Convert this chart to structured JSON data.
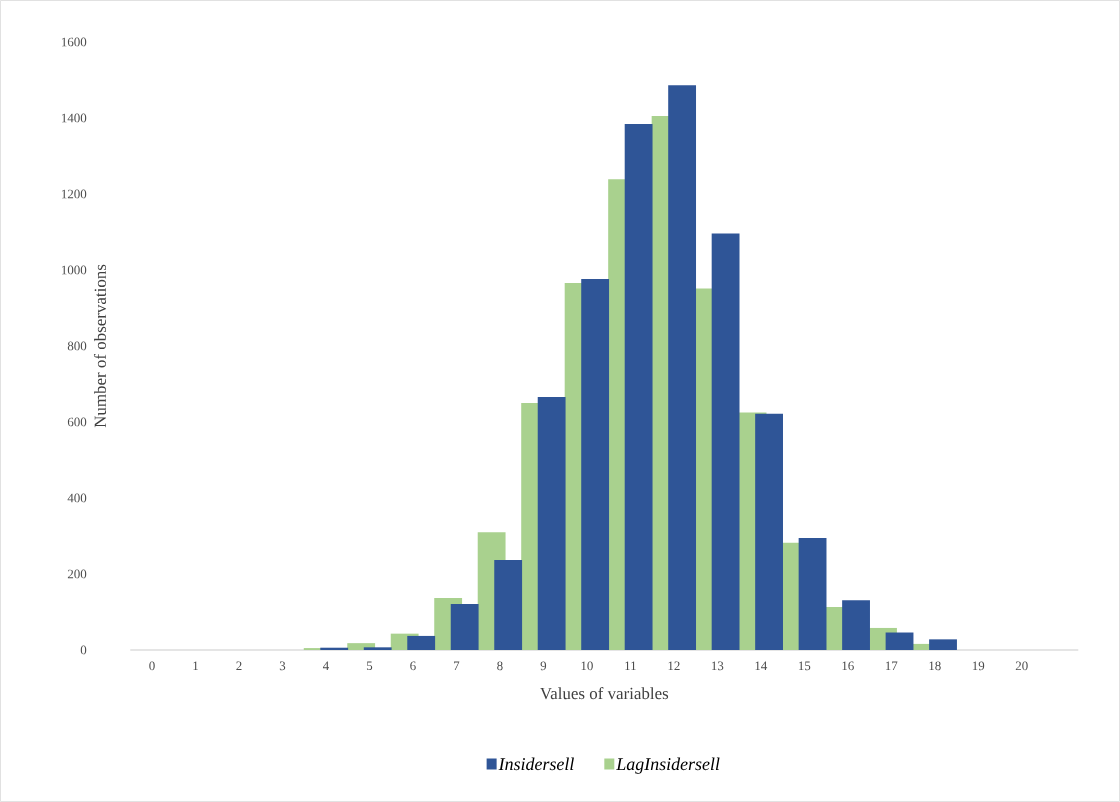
{
  "chart_data": {
    "type": "bar",
    "xlabel": "Values of variables",
    "ylabel": "Number of observations",
    "categories": [
      "0",
      "1",
      "2",
      "3",
      "4",
      "5",
      "6",
      "7",
      "8",
      "9",
      "10",
      "11",
      "12",
      "13",
      "14",
      "15",
      "16",
      "17",
      "18",
      "19",
      "20"
    ],
    "series": [
      {
        "name": "Insidersell",
        "color": "#2f5597",
        "values": [
          0,
          0,
          0,
          0,
          6,
          7,
          37,
          121,
          237,
          666,
          976,
          1384,
          1486,
          1096,
          622,
          295,
          131,
          46,
          28,
          0,
          0
        ]
      },
      {
        "name": "LagInsidersell",
        "color": "#a9d18e",
        "values": [
          0,
          0,
          0,
          0,
          5,
          18,
          43,
          137,
          310,
          650,
          966,
          1239,
          1405,
          951,
          625,
          282,
          113,
          58,
          16,
          0,
          0
        ]
      }
    ],
    "ylim": [
      0,
      1600
    ],
    "yticks": [
      0,
      200,
      400,
      600,
      800,
      1000,
      1200,
      1400,
      1600
    ],
    "grid": false,
    "legend": "bottom"
  }
}
